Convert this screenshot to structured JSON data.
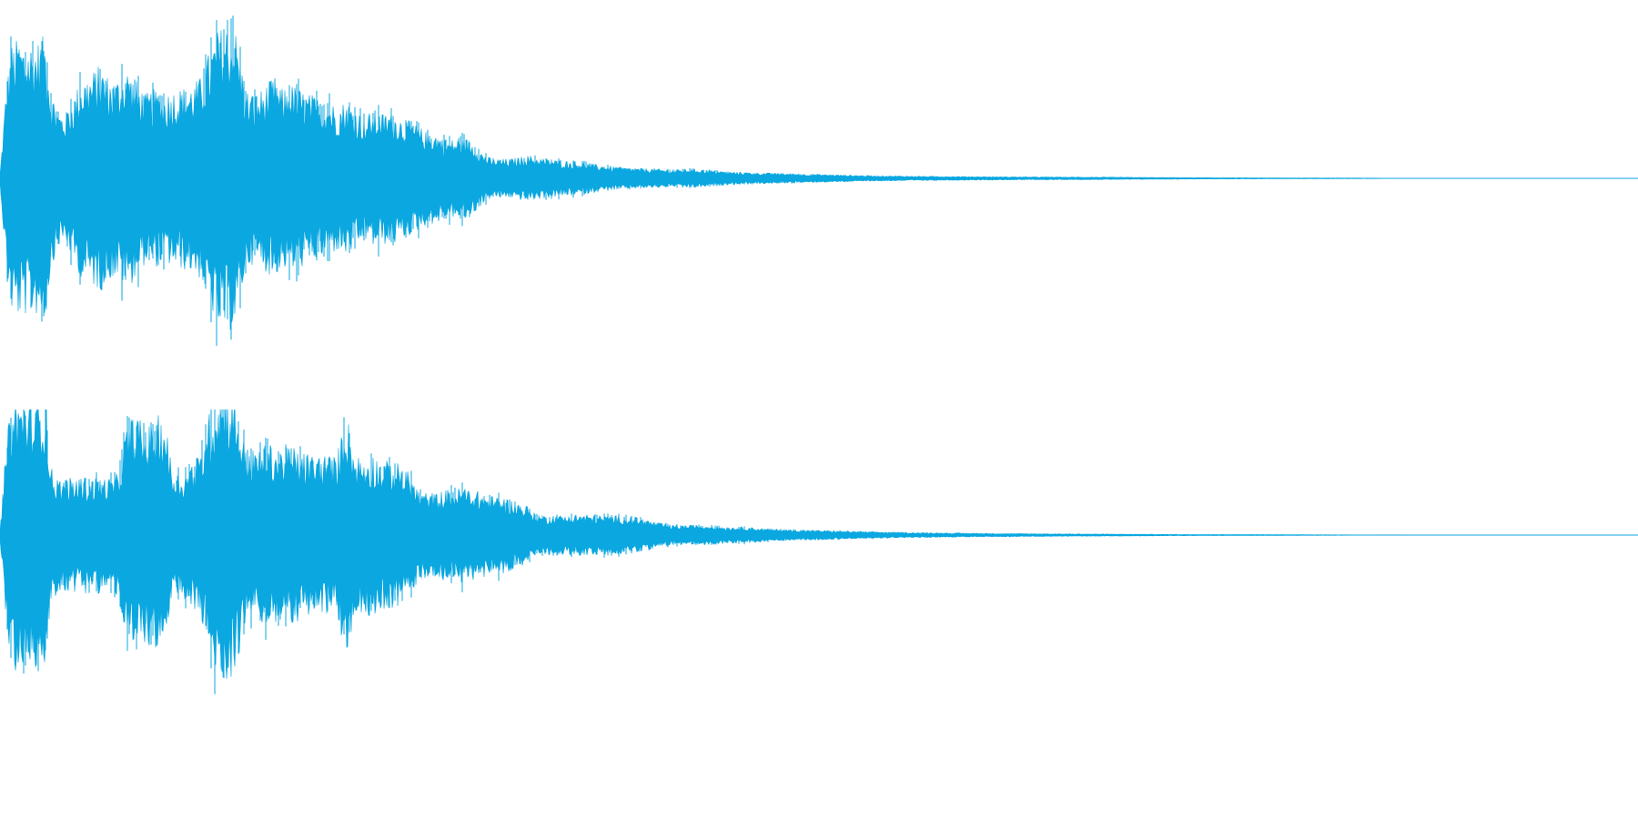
{
  "waveform": {
    "color": "#0aa7e0",
    "background": "#ffffff",
    "channels": [
      {
        "name": "channel-1",
        "envelope": [
          [
            0,
            0.02
          ],
          [
            6,
            0.5
          ],
          [
            12,
            0.82
          ],
          [
            20,
            0.86
          ],
          [
            30,
            0.84
          ],
          [
            40,
            0.84
          ],
          [
            50,
            0.88
          ],
          [
            56,
            0.55
          ],
          [
            64,
            0.42
          ],
          [
            72,
            0.4
          ],
          [
            80,
            0.5
          ],
          [
            90,
            0.62
          ],
          [
            100,
            0.65
          ],
          [
            110,
            0.7
          ],
          [
            120,
            0.62
          ],
          [
            130,
            0.62
          ],
          [
            140,
            0.68
          ],
          [
            150,
            0.6
          ],
          [
            160,
            0.52
          ],
          [
            170,
            0.55
          ],
          [
            180,
            0.52
          ],
          [
            190,
            0.55
          ],
          [
            200,
            0.56
          ],
          [
            210,
            0.58
          ],
          [
            220,
            0.62
          ],
          [
            230,
            0.78
          ],
          [
            240,
            0.92
          ],
          [
            250,
            0.95
          ],
          [
            260,
            0.9
          ],
          [
            270,
            0.55
          ],
          [
            280,
            0.52
          ],
          [
            290,
            0.56
          ],
          [
            300,
            0.62
          ],
          [
            310,
            0.55
          ],
          [
            320,
            0.58
          ],
          [
            330,
            0.55
          ],
          [
            340,
            0.52
          ],
          [
            350,
            0.5
          ],
          [
            360,
            0.48
          ],
          [
            370,
            0.45
          ],
          [
            380,
            0.48
          ],
          [
            390,
            0.44
          ],
          [
            400,
            0.38
          ],
          [
            410,
            0.42
          ],
          [
            420,
            0.4
          ],
          [
            430,
            0.42
          ],
          [
            440,
            0.38
          ],
          [
            450,
            0.35
          ],
          [
            460,
            0.32
          ],
          [
            470,
            0.28
          ],
          [
            480,
            0.28
          ],
          [
            490,
            0.24
          ],
          [
            500,
            0.24
          ],
          [
            510,
            0.26
          ],
          [
            520,
            0.22
          ],
          [
            530,
            0.16
          ],
          [
            540,
            0.12
          ],
          [
            560,
            0.12
          ],
          [
            580,
            0.14
          ],
          [
            600,
            0.12
          ],
          [
            620,
            0.11
          ],
          [
            640,
            0.1
          ],
          [
            660,
            0.08
          ],
          [
            680,
            0.07
          ],
          [
            700,
            0.06
          ],
          [
            720,
            0.06
          ],
          [
            740,
            0.05
          ],
          [
            760,
            0.06
          ],
          [
            780,
            0.05
          ],
          [
            800,
            0.04
          ],
          [
            830,
            0.035
          ],
          [
            860,
            0.03
          ],
          [
            900,
            0.025
          ],
          [
            950,
            0.018
          ],
          [
            1000,
            0.014
          ],
          [
            1100,
            0.01
          ],
          [
            1200,
            0.008
          ],
          [
            1300,
            0.005
          ],
          [
            1400,
            0.003
          ],
          [
            1500,
            0.002
          ],
          [
            1568,
            0.0
          ]
        ]
      },
      {
        "name": "channel-2",
        "envelope": [
          [
            0,
            0.02
          ],
          [
            6,
            0.5
          ],
          [
            12,
            0.82
          ],
          [
            20,
            0.86
          ],
          [
            30,
            0.84
          ],
          [
            40,
            0.82
          ],
          [
            50,
            0.88
          ],
          [
            56,
            0.42
          ],
          [
            64,
            0.35
          ],
          [
            72,
            0.35
          ],
          [
            80,
            0.35
          ],
          [
            90,
            0.36
          ],
          [
            100,
            0.35
          ],
          [
            110,
            0.36
          ],
          [
            120,
            0.35
          ],
          [
            130,
            0.38
          ],
          [
            140,
            0.7
          ],
          [
            150,
            0.75
          ],
          [
            160,
            0.65
          ],
          [
            170,
            0.72
          ],
          [
            180,
            0.75
          ],
          [
            190,
            0.4
          ],
          [
            200,
            0.38
          ],
          [
            210,
            0.45
          ],
          [
            220,
            0.5
          ],
          [
            230,
            0.75
          ],
          [
            240,
            0.88
          ],
          [
            250,
            0.92
          ],
          [
            260,
            0.8
          ],
          [
            270,
            0.55
          ],
          [
            280,
            0.52
          ],
          [
            290,
            0.55
          ],
          [
            300,
            0.56
          ],
          [
            310,
            0.52
          ],
          [
            320,
            0.55
          ],
          [
            330,
            0.52
          ],
          [
            340,
            0.5
          ],
          [
            350,
            0.5
          ],
          [
            360,
            0.5
          ],
          [
            370,
            0.48
          ],
          [
            380,
            0.78
          ],
          [
            390,
            0.5
          ],
          [
            400,
            0.48
          ],
          [
            410,
            0.5
          ],
          [
            420,
            0.46
          ],
          [
            430,
            0.45
          ],
          [
            440,
            0.44
          ],
          [
            450,
            0.38
          ],
          [
            460,
            0.28
          ],
          [
            470,
            0.26
          ],
          [
            480,
            0.26
          ],
          [
            490,
            0.28
          ],
          [
            500,
            0.28
          ],
          [
            510,
            0.3
          ],
          [
            520,
            0.28
          ],
          [
            530,
            0.26
          ],
          [
            540,
            0.24
          ],
          [
            550,
            0.24
          ],
          [
            560,
            0.22
          ],
          [
            570,
            0.2
          ],
          [
            580,
            0.18
          ],
          [
            590,
            0.12
          ],
          [
            600,
            0.12
          ],
          [
            620,
            0.12
          ],
          [
            640,
            0.13
          ],
          [
            660,
            0.12
          ],
          [
            680,
            0.12
          ],
          [
            700,
            0.11
          ],
          [
            720,
            0.08
          ],
          [
            740,
            0.06
          ],
          [
            760,
            0.06
          ],
          [
            780,
            0.06
          ],
          [
            800,
            0.05
          ],
          [
            820,
            0.05
          ],
          [
            840,
            0.04
          ],
          [
            860,
            0.035
          ],
          [
            900,
            0.03
          ],
          [
            950,
            0.022
          ],
          [
            1000,
            0.016
          ],
          [
            1100,
            0.01
          ],
          [
            1200,
            0.007
          ],
          [
            1300,
            0.004
          ],
          [
            1400,
            0.003
          ],
          [
            1568,
            0.0
          ]
        ]
      }
    ]
  }
}
